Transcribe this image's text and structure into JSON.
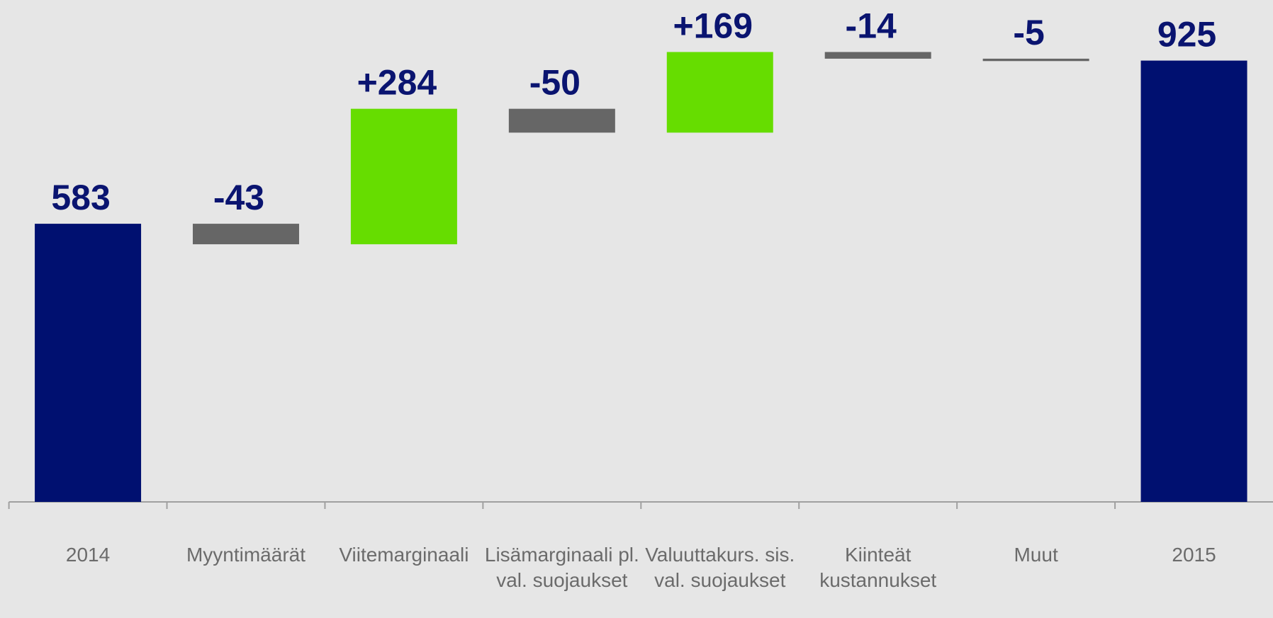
{
  "chart_data": {
    "type": "waterfall",
    "categories": [
      "2014",
      "Myyntimäärät",
      "Viitemarginaali",
      "Lisämarginaali pl. val. suojaukset",
      "Valuuttakurs. sis. val. suojaukset",
      "Kiinteät kustannukset",
      "Muut",
      "2015"
    ],
    "values": [
      583,
      -43,
      284,
      -50,
      169,
      -14,
      -5,
      925
    ],
    "value_labels": [
      "583",
      "-43",
      "+284",
      "-50",
      "+169",
      "-14",
      "-5",
      "925"
    ],
    "measure": [
      "total",
      "relative",
      "relative",
      "relative",
      "relative",
      "relative",
      "relative",
      "total"
    ],
    "colors": [
      "#001070",
      "#666666",
      "#66dd00",
      "#666666",
      "#66dd00",
      "#666666",
      "#666666",
      "#001070"
    ],
    "ylim": [
      0,
      1052
    ]
  }
}
